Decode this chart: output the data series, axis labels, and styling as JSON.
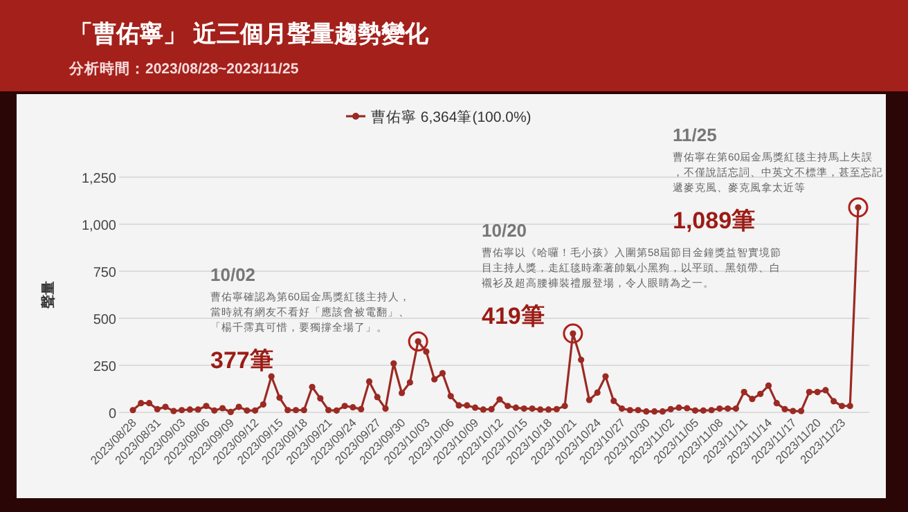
{
  "chart_data": {
    "type": "line",
    "title": "「曹佑寧」 近三個月聲量趨勢變化",
    "subtitle": "分析時間：2023/08/28~2023/11/25",
    "ylabel": "聲量",
    "categories": [
      "2023/08/28",
      null,
      null,
      "2023/08/31",
      null,
      null,
      "2023/09/03",
      null,
      null,
      "2023/09/06",
      null,
      null,
      "2023/09/09",
      null,
      null,
      "2023/09/12",
      null,
      null,
      "2023/09/15",
      null,
      null,
      "2023/09/18",
      null,
      null,
      "2023/09/21",
      null,
      null,
      "2023/09/24",
      null,
      null,
      "2023/09/27",
      null,
      null,
      "2023/09/30",
      null,
      null,
      "2023/10/03",
      null,
      null,
      "2023/10/06",
      null,
      null,
      "2023/10/09",
      null,
      null,
      "2023/10/12",
      null,
      null,
      "2023/10/15",
      null,
      null,
      "2023/10/18",
      null,
      null,
      "2023/10/21",
      null,
      null,
      "2023/10/24",
      null,
      null,
      "2023/10/27",
      null,
      null,
      "2023/10/30",
      null,
      null,
      "2023/11/02",
      null,
      null,
      "2023/11/05",
      null,
      null,
      "2023/11/08",
      null,
      null,
      "2023/11/11",
      null,
      null,
      "2023/11/14",
      null,
      null,
      "2023/11/17",
      null,
      null,
      "2023/11/20",
      null,
      null,
      "2023/11/23",
      null,
      null
    ],
    "series": [
      {
        "name": "曹佑寧 6,364筆(100.0%)",
        "color": "#9b2a23",
        "values": [
          12,
          49,
          49,
          17,
          29,
          7,
          12,
          15,
          15,
          34,
          10,
          22,
          2,
          29,
          10,
          10,
          42,
          191,
          78,
          12,
          12,
          12,
          135,
          74,
          12,
          10,
          34,
          27,
          17,
          164,
          81,
          20,
          260,
          103,
          159,
          377,
          323,
          176,
          208,
          86,
          37,
          37,
          25,
          15,
          17,
          69,
          34,
          25,
          20,
          20,
          15,
          15,
          17,
          34,
          419,
          279,
          66,
          105,
          191,
          61,
          20,
          12,
          12,
          5,
          5,
          5,
          17,
          25,
          22,
          10,
          10,
          12,
          20,
          20,
          20,
          108,
          71,
          98,
          142,
          49,
          17,
          7,
          7,
          108,
          108,
          118,
          59,
          34,
          34,
          1089
        ]
      }
    ],
    "ylim": [
      0,
      1250
    ],
    "yticks": [
      0,
      {
        "value": 250,
        "label": "250"
      },
      {
        "value": 500,
        "label": "500"
      },
      {
        "value": 750,
        "label": "750"
      },
      {
        "value": 1000,
        "label": "1,000"
      },
      {
        "value": 1250,
        "label": "1,250"
      }
    ],
    "grid": "y",
    "legend": "top",
    "marker": "circle",
    "line_style": "solid",
    "annotations": [
      "10/02",
      "曹佑寧確認為第60屆金馬獎紅毯主持人，當時就有網友不看好「應該會被電翻」、「楊千霈真可惜，要獨撐全場了」。",
      "377筆",
      "10/20",
      "曹佑寧以《哈囉！毛小孩》入圍第58屆節目金鐘獎益智實境節目主持人獎，走紅毯時牽著帥氣小黑狗，以平頭、黑領帶、白襯衫及超高腰褲裝禮服登場，令人眼睛為之一。",
      "419筆",
      "11/25",
      "曹佑寧在第60屆金馬獎紅毯主持馬上失誤，不僅說話忘詞、中英文不標準，甚至忘記遞麥克風、麥克風拿太近等",
      "1,089筆"
    ]
  }
}
